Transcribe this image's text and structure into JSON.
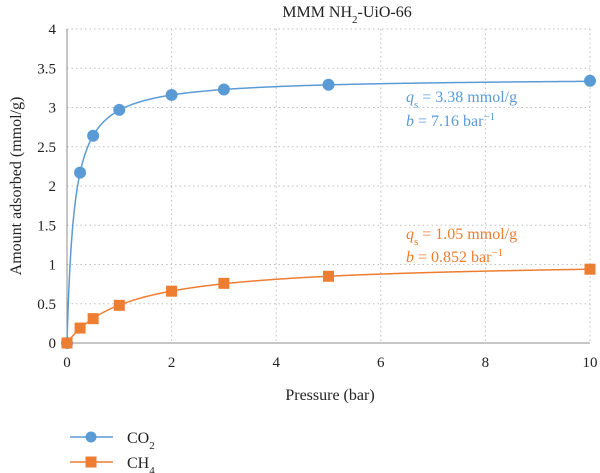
{
  "chart_data": {
    "type": "scatter",
    "title_main": "MMM NH",
    "title_sub": "2",
    "title_tail": "-UiO-66",
    "xlabel": "Pressure (bar)",
    "ylabel": "Amount adsorbed (mmol/g)",
    "xlim": [
      0,
      10
    ],
    "ylim": [
      0,
      4
    ],
    "xticks": [
      "0",
      "2",
      "4",
      "6",
      "8",
      "10"
    ],
    "yticks": [
      "0",
      "0.5",
      "1",
      "1.5",
      "2",
      "2.5",
      "3",
      "3.5",
      "4"
    ],
    "grid": true,
    "legend_position": "bottom-left",
    "series": [
      {
        "name_main": "CO",
        "name_sub": "2",
        "color": "#5b9bd5",
        "marker": "circle",
        "x": [
          0,
          0.25,
          0.5,
          1,
          2,
          3,
          5,
          10
        ],
        "y": [
          0,
          2.17,
          2.64,
          2.97,
          3.16,
          3.23,
          3.29,
          3.34
        ],
        "fit": {
          "qs": 3.38,
          "b": 7.16
        },
        "annotation": {
          "q_letter": "q",
          "q_sub": "s",
          "q_tail": " = 3.38 mmol/g",
          "b_letter": "b",
          "b_tail": " = 7.16 bar",
          "b_sup": "−1"
        }
      },
      {
        "name_main": "CH",
        "name_sub": "4",
        "color": "#ed7d31",
        "marker": "square",
        "x": [
          0,
          0.25,
          0.5,
          1,
          2,
          3,
          5,
          10
        ],
        "y": [
          0,
          0.19,
          0.31,
          0.48,
          0.66,
          0.76,
          0.85,
          0.94
        ],
        "fit": {
          "qs": 1.05,
          "b": 0.852
        },
        "annotation": {
          "q_letter": "q",
          "q_sub": "s",
          "q_tail": " = 1.05 mmol/g",
          "b_letter": "b",
          "b_tail": " = 0.852 bar",
          "b_sup": "−1"
        }
      }
    ]
  }
}
